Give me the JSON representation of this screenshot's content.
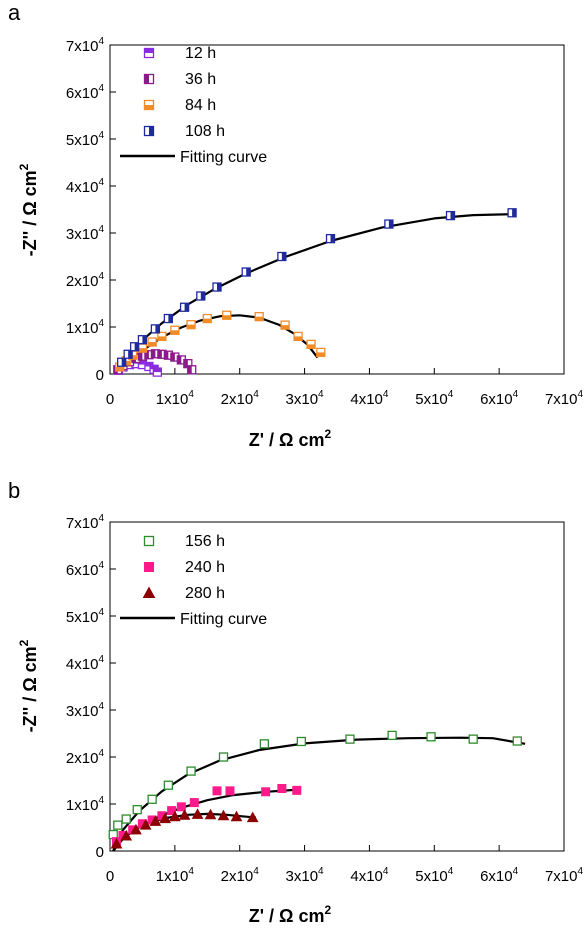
{
  "chart_data": [
    {
      "panel_label": "a",
      "type": "scatter",
      "xlabel": "Z' / Ω cm",
      "xlabel_sup": "2",
      "ylabel": "-Z'' / Ω cm",
      "ylabel_sup": "2",
      "xlim": [
        0,
        70000
      ],
      "ylim": [
        0,
        70000
      ],
      "x_ticks": [
        {
          "value": 0,
          "base": "0",
          "exp": ""
        },
        {
          "value": 10000,
          "base": "1x10",
          "exp": "4"
        },
        {
          "value": 20000,
          "base": "2x10",
          "exp": "4"
        },
        {
          "value": 30000,
          "base": "3x10",
          "exp": "4"
        },
        {
          "value": 40000,
          "base": "4x10",
          "exp": "4"
        },
        {
          "value": 50000,
          "base": "5x10",
          "exp": "4"
        },
        {
          "value": 60000,
          "base": "6x10",
          "exp": "4"
        },
        {
          "value": 70000,
          "base": "7x10",
          "exp": "4"
        }
      ],
      "y_ticks": [
        {
          "value": 0,
          "base": "0",
          "exp": ""
        },
        {
          "value": 10000,
          "base": "1x10",
          "exp": "4"
        },
        {
          "value": 20000,
          "base": "2x10",
          "exp": "4"
        },
        {
          "value": 30000,
          "base": "3x10",
          "exp": "4"
        },
        {
          "value": 40000,
          "base": "4x10",
          "exp": "4"
        },
        {
          "value": 50000,
          "base": "5x10",
          "exp": "4"
        },
        {
          "value": 60000,
          "base": "6x10",
          "exp": "4"
        },
        {
          "value": 70000,
          "base": "7x10",
          "exp": "4"
        }
      ],
      "legend_position": "top-left",
      "fit_label": "Fitting curve",
      "series": [
        {
          "name": "12 h",
          "marker": "square-half-top",
          "color": "#8a2be2",
          "x": [
            1300,
            2000,
            3000,
            4000,
            5000,
            6000,
            6800,
            7300
          ],
          "y": [
            800,
            1500,
            2000,
            2200,
            2000,
            1600,
            1000,
            400
          ],
          "fit": [
            [
              800,
              0
            ],
            [
              1500,
              900
            ],
            [
              2500,
              1700
            ],
            [
              3500,
              2100
            ],
            [
              4500,
              2200
            ],
            [
              5500,
              1900
            ],
            [
              6300,
              1400
            ],
            [
              7000,
              800
            ],
            [
              7500,
              200
            ]
          ]
        },
        {
          "name": "36 h",
          "marker": "square-half-left",
          "color": "#8b1a8b",
          "x": [
            1200,
            2000,
            3000,
            4000,
            5000,
            6000,
            7000,
            8000,
            9000,
            10000,
            11000,
            12000,
            12600
          ],
          "y": [
            900,
            1800,
            2600,
            3300,
            3800,
            4100,
            4300,
            4200,
            4000,
            3600,
            3000,
            2200,
            900
          ],
          "fit": [
            [
              800,
              0
            ],
            [
              1500,
              1300
            ],
            [
              3000,
              2700
            ],
            [
              4500,
              3600
            ],
            [
              6000,
              4100
            ],
            [
              7500,
              4300
            ],
            [
              9000,
              4100
            ],
            [
              10500,
              3500
            ],
            [
              11500,
              2700
            ],
            [
              12300,
              1600
            ],
            [
              12800,
              500
            ]
          ]
        },
        {
          "name": "84 h",
          "marker": "square-half-bottom",
          "color": "#f28c28",
          "x": [
            1500,
            2500,
            3500,
            5000,
            6500,
            8000,
            10000,
            12500,
            15000,
            18000,
            23000,
            27000,
            29000,
            31000,
            32500
          ],
          "y": [
            1500,
            2800,
            4000,
            5500,
            6800,
            8000,
            9300,
            10500,
            11800,
            12500,
            12200,
            10400,
            8000,
            6300,
            4600
          ],
          "fit": [
            [
              1000,
              0
            ],
            [
              2500,
              2200
            ],
            [
              5000,
              5000
            ],
            [
              8000,
              7800
            ],
            [
              11000,
              9900
            ],
            [
              14000,
              11400
            ],
            [
              17000,
              12300
            ],
            [
              20000,
              12500
            ],
            [
              23000,
              12000
            ],
            [
              26000,
              10500
            ],
            [
              28500,
              8500
            ],
            [
              30500,
              6200
            ],
            [
              32000,
              3500
            ]
          ]
        },
        {
          "name": "108 h",
          "marker": "square-half-right",
          "color": "#1f2a9c",
          "x": [
            1800,
            2800,
            3800,
            5000,
            7000,
            9000,
            11500,
            14000,
            16500,
            21000,
            26500,
            34000,
            43000,
            52500,
            62000
          ],
          "y": [
            2500,
            4200,
            5800,
            7300,
            9600,
            11800,
            14200,
            16600,
            18500,
            21700,
            25000,
            28800,
            31900,
            33700,
            34300
          ],
          "fit": [
            [
              1000,
              0
            ],
            [
              2500,
              3500
            ],
            [
              5000,
              7200
            ],
            [
              8000,
              10800
            ],
            [
              12000,
              14800
            ],
            [
              16000,
              18000
            ],
            [
              21000,
              21400
            ],
            [
              27000,
              24900
            ],
            [
              34000,
              28300
            ],
            [
              42000,
              31200
            ],
            [
              50000,
              33100
            ],
            [
              56000,
              33800
            ],
            [
              62000,
              34000
            ]
          ]
        }
      ]
    },
    {
      "panel_label": "b",
      "type": "scatter",
      "xlabel": "Z' / Ω cm",
      "xlabel_sup": "2",
      "ylabel": "-Z'' / Ω cm",
      "ylabel_sup": "2",
      "xlim": [
        0,
        70000
      ],
      "ylim": [
        0,
        70000
      ],
      "x_ticks": [
        {
          "value": 0,
          "base": "0",
          "exp": ""
        },
        {
          "value": 10000,
          "base": "1x10",
          "exp": "4"
        },
        {
          "value": 20000,
          "base": "2x10",
          "exp": "4"
        },
        {
          "value": 30000,
          "base": "3x10",
          "exp": "4"
        },
        {
          "value": 40000,
          "base": "4x10",
          "exp": "4"
        },
        {
          "value": 50000,
          "base": "5x10",
          "exp": "4"
        },
        {
          "value": 60000,
          "base": "6x10",
          "exp": "4"
        },
        {
          "value": 70000,
          "base": "7x10",
          "exp": "4"
        }
      ],
      "y_ticks": [
        {
          "value": 0,
          "base": "0",
          "exp": ""
        },
        {
          "value": 10000,
          "base": "1x10",
          "exp": "4"
        },
        {
          "value": 20000,
          "base": "2x10",
          "exp": "4"
        },
        {
          "value": 30000,
          "base": "3x10",
          "exp": "4"
        },
        {
          "value": 40000,
          "base": "4x10",
          "exp": "4"
        },
        {
          "value": 50000,
          "base": "5x10",
          "exp": "4"
        },
        {
          "value": 60000,
          "base": "6x10",
          "exp": "4"
        },
        {
          "value": 70000,
          "base": "7x10",
          "exp": "4"
        }
      ],
      "legend_position": "top-left",
      "fit_label": "Fitting curve",
      "series": [
        {
          "name": "156 h",
          "marker": "square-open",
          "color": "#2e8b2e",
          "x": [
            500,
            1200,
            2500,
            4200,
            6500,
            9000,
            12500,
            17500,
            23800,
            29500,
            37000,
            43500,
            49500,
            56000,
            62800
          ],
          "y": [
            3500,
            5500,
            6800,
            8800,
            11000,
            14000,
            17000,
            20000,
            22800,
            23300,
            23800,
            24600,
            24300,
            23800,
            23400
          ],
          "fit": [
            [
              500,
              0
            ],
            [
              2000,
              4500
            ],
            [
              4500,
              8500
            ],
            [
              8000,
              12700
            ],
            [
              12000,
              16300
            ],
            [
              17000,
              19300
            ],
            [
              23000,
              21500
            ],
            [
              30000,
              22900
            ],
            [
              38000,
              23700
            ],
            [
              46000,
              24000
            ],
            [
              54000,
              24100
            ],
            [
              59000,
              24000
            ],
            [
              64000,
              22800
            ]
          ]
        },
        {
          "name": "240 h",
          "marker": "square-filled",
          "color": "#ff1a8c",
          "x": [
            1000,
            2000,
            3500,
            5000,
            6500,
            8000,
            9500,
            11000,
            13000,
            16500,
            18500,
            24000,
            26500,
            28800
          ],
          "y": [
            2000,
            3300,
            4500,
            5800,
            6600,
            7500,
            8600,
            9400,
            10300,
            12800,
            12800,
            12600,
            13300,
            12900
          ],
          "fit": [
            [
              500,
              0
            ],
            [
              2000,
              2800
            ],
            [
              4500,
              5100
            ],
            [
              7500,
              7300
            ],
            [
              11000,
              9200
            ],
            [
              15000,
              10800
            ],
            [
              19000,
              11900
            ],
            [
              24000,
              12600
            ],
            [
              28500,
              13000
            ]
          ]
        },
        {
          "name": "280 h",
          "marker": "triangle-filled",
          "color": "#8b0000",
          "x": [
            1000,
            2500,
            4000,
            5500,
            7000,
            8500,
            10000,
            11500,
            13500,
            15500,
            17500,
            19500,
            22000
          ],
          "y": [
            1500,
            3200,
            4500,
            5500,
            6300,
            6900,
            7300,
            7600,
            7800,
            7700,
            7500,
            7300,
            7100
          ],
          "fit": [
            [
              500,
              0
            ],
            [
              2000,
              2600
            ],
            [
              4000,
              4700
            ],
            [
              6500,
              6200
            ],
            [
              9000,
              7100
            ],
            [
              12000,
              7700
            ],
            [
              15000,
              7900
            ],
            [
              18000,
              7700
            ],
            [
              21000,
              7300
            ],
            [
              22500,
              7100
            ]
          ]
        }
      ]
    }
  ]
}
